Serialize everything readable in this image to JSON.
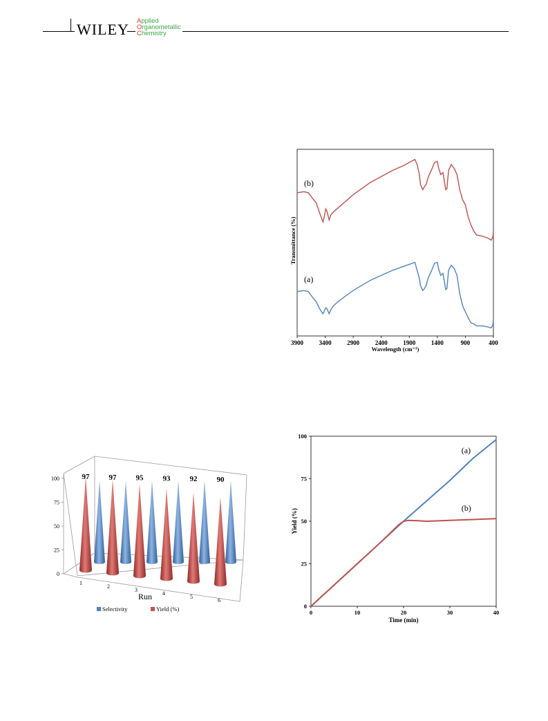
{
  "header": {
    "publisher": "WILEY",
    "journal_lines": [
      {
        "initial": "A",
        "rest": "pplied"
      },
      {
        "initial": "O",
        "rest": "rganometallic"
      },
      {
        "initial": "C",
        "rest": "hemistry"
      }
    ]
  },
  "chart_data": [
    {
      "type": "line",
      "xlabel": "Wavelength (cm⁻¹)",
      "ylabel": "Transmittance (%)",
      "x_ticks": [
        3900,
        3400,
        2900,
        2400,
        1900,
        1400,
        900,
        400
      ],
      "xlim": [
        3900,
        400
      ],
      "series": [
        {
          "name": "(b)",
          "color": "#c0504d",
          "x": [
            3900,
            3780,
            3700,
            3620,
            3560,
            3500,
            3440,
            3420,
            3390,
            3370,
            3330,
            3300,
            3250,
            3150,
            2900,
            2600,
            2400,
            2200,
            2000,
            1800,
            1760,
            1720,
            1700,
            1660,
            1630,
            1600,
            1560,
            1500,
            1450,
            1400,
            1380,
            1340,
            1300,
            1250,
            1230,
            1200,
            1150,
            1100,
            1050,
            1000,
            950,
            900,
            850,
            800,
            750,
            700,
            600,
            500,
            440,
            410,
            400
          ],
          "y": [
            52,
            53,
            52,
            46,
            42,
            32,
            23,
            27,
            36,
            34,
            25,
            30,
            33,
            38,
            50,
            62,
            68,
            74,
            79,
            85,
            80,
            70,
            60,
            55,
            58,
            60,
            68,
            75,
            82,
            83,
            77,
            70,
            72,
            55,
            56,
            74,
            80,
            76,
            70,
            55,
            45,
            40,
            28,
            20,
            14,
            10,
            9,
            7,
            5,
            8,
            14
          ]
        },
        {
          "name": "(a)",
          "color": "#4f81bd",
          "x": [
            3900,
            3780,
            3700,
            3620,
            3560,
            3500,
            3440,
            3420,
            3390,
            3370,
            3330,
            3300,
            3250,
            3150,
            2900,
            2600,
            2400,
            2200,
            2000,
            1800,
            1760,
            1720,
            1700,
            1660,
            1630,
            1600,
            1560,
            1500,
            1450,
            1400,
            1380,
            1340,
            1300,
            1250,
            1230,
            1200,
            1150,
            1100,
            1050,
            1000,
            950,
            900,
            850,
            800,
            750,
            700,
            600,
            500,
            440,
            410,
            400
          ],
          "y": [
            -46,
            -45,
            -46,
            -52,
            -56,
            -63,
            -68,
            -66,
            -62,
            -63,
            -68,
            -64,
            -60,
            -55,
            -45,
            -35,
            -30,
            -25,
            -21,
            -17,
            -25,
            -33,
            -40,
            -45,
            -43,
            -40,
            -32,
            -25,
            -18,
            -17,
            -23,
            -30,
            -28,
            -44,
            -43,
            -25,
            -20,
            -23,
            -30,
            -48,
            -60,
            -66,
            -72,
            -77,
            -78,
            -80,
            -80,
            -81,
            -82,
            -79,
            -73
          ]
        }
      ]
    },
    {
      "type": "bar",
      "xlabel": "Run",
      "categories": [
        "1",
        "2",
        "3",
        "4",
        "5",
        "6"
      ],
      "ylim": [
        0,
        100
      ],
      "y_ticks": [
        0,
        25,
        50,
        75,
        100
      ],
      "labels": [
        "97",
        "97",
        "95",
        "93",
        "92",
        "90"
      ],
      "series": [
        {
          "name": "Selectivity",
          "color": "#4f81bd",
          "values": [
            100,
            100,
            100,
            100,
            100,
            100
          ]
        },
        {
          "name": "Yield (%)",
          "color": "#c0504d",
          "values": [
            97,
            97,
            95,
            93,
            92,
            90
          ]
        }
      ]
    },
    {
      "type": "line",
      "xlabel": "Time (min)",
      "ylabel": "Yield (%)",
      "xlim": [
        0,
        40
      ],
      "ylim": [
        0,
        100
      ],
      "x_ticks": [
        0,
        10,
        20,
        30,
        40
      ],
      "y_ticks": [
        0,
        25,
        50,
        75,
        100
      ],
      "series": [
        {
          "name": "(a)",
          "color": "#4f81bd",
          "x": [
            0,
            5,
            10,
            15,
            20,
            25,
            30,
            35,
            40
          ],
          "y": [
            0,
            12.5,
            25,
            37.5,
            50,
            62,
            74,
            87,
            98
          ]
        },
        {
          "name": "(b)",
          "color": "#c0504d",
          "x": [
            0,
            5,
            10,
            15,
            19,
            20,
            21,
            23,
            25,
            30,
            35,
            40
          ],
          "y": [
            0,
            12.5,
            25,
            37.5,
            48,
            50,
            50.5,
            50.3,
            50,
            50.5,
            51,
            51.5
          ]
        }
      ]
    }
  ]
}
